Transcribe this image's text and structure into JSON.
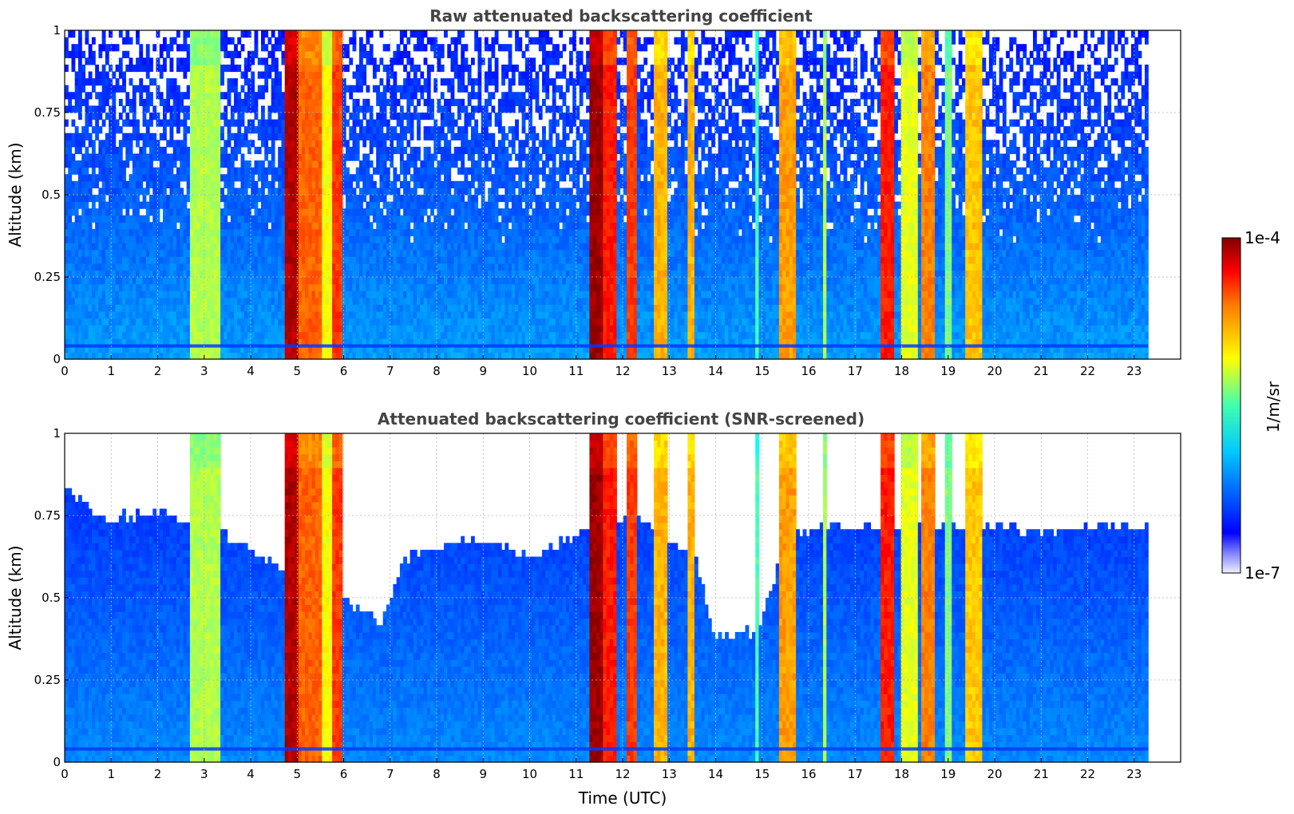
{
  "chart_data": [
    {
      "type": "heatmap",
      "title": "Raw attenuated backscattering coefficient",
      "xlabel": "",
      "ylabel": "Altitude (km)",
      "xlim": [
        0,
        24
      ],
      "ylim": [
        0,
        1
      ],
      "x_ticks": [
        "0",
        "1",
        "2",
        "3",
        "4",
        "5",
        "6",
        "7",
        "8",
        "9",
        "10",
        "11",
        "12",
        "13",
        "14",
        "15",
        "16",
        "17",
        "18",
        "19",
        "20",
        "21",
        "22",
        "23"
      ],
      "y_ticks": [
        "0",
        "0.25",
        "0.5",
        "0.75",
        "1"
      ],
      "grid": true,
      "data_end_time": 23.3,
      "cloud_columns": [
        {
          "start": 2.7,
          "end": 3.35,
          "intensity": 0.55
        },
        {
          "start": 4.75,
          "end": 5.0,
          "intensity": 0.95
        },
        {
          "start": 5.0,
          "end": 5.5,
          "intensity": 0.78
        },
        {
          "start": 5.5,
          "end": 5.75,
          "intensity": 0.62
        },
        {
          "start": 5.75,
          "end": 5.95,
          "intensity": 0.82
        },
        {
          "start": 11.25,
          "end": 11.55,
          "intensity": 0.97
        },
        {
          "start": 11.55,
          "end": 11.9,
          "intensity": 0.85
        },
        {
          "start": 12.1,
          "end": 12.3,
          "intensity": 0.82
        },
        {
          "start": 12.7,
          "end": 12.95,
          "intensity": 0.7
        },
        {
          "start": 13.4,
          "end": 13.55,
          "intensity": 0.7
        },
        {
          "start": 14.85,
          "end": 14.95,
          "intensity": 0.45
        },
        {
          "start": 15.35,
          "end": 15.75,
          "intensity": 0.72
        },
        {
          "start": 16.3,
          "end": 16.4,
          "intensity": 0.55
        },
        {
          "start": 17.55,
          "end": 17.85,
          "intensity": 0.85
        },
        {
          "start": 18.0,
          "end": 18.35,
          "intensity": 0.6
        },
        {
          "start": 18.45,
          "end": 18.7,
          "intensity": 0.75
        },
        {
          "start": 18.9,
          "end": 19.05,
          "intensity": 0.5
        },
        {
          "start": 19.35,
          "end": 19.75,
          "intensity": 0.68
        }
      ]
    },
    {
      "type": "heatmap",
      "title": "Attenuated backscattering coefficient (SNR-screened)",
      "xlabel": "Time (UTC)",
      "ylabel": "Altitude (km)",
      "xlim": [
        0,
        24
      ],
      "ylim": [
        0,
        1
      ],
      "x_ticks": [
        "0",
        "1",
        "2",
        "3",
        "4",
        "5",
        "6",
        "7",
        "8",
        "9",
        "10",
        "11",
        "12",
        "13",
        "14",
        "15",
        "16",
        "17",
        "18",
        "19",
        "20",
        "21",
        "22",
        "23"
      ],
      "y_ticks": [
        "0",
        "0.25",
        "0.5",
        "0.75",
        "1"
      ],
      "grid": true,
      "data_end_time": 23.3,
      "screened_top_profile": [
        {
          "t": 0.0,
          "top": 0.85
        },
        {
          "t": 0.7,
          "top": 0.74
        },
        {
          "t": 2.0,
          "top": 0.76
        },
        {
          "t": 3.4,
          "top": 0.7
        },
        {
          "t": 4.5,
          "top": 0.6
        },
        {
          "t": 6.0,
          "top": 0.5
        },
        {
          "t": 6.8,
          "top": 0.42
        },
        {
          "t": 7.3,
          "top": 0.62
        },
        {
          "t": 8.0,
          "top": 0.66
        },
        {
          "t": 9.0,
          "top": 0.68
        },
        {
          "t": 10.2,
          "top": 0.62
        },
        {
          "t": 11.0,
          "top": 0.7
        },
        {
          "t": 12.3,
          "top": 0.75
        },
        {
          "t": 13.6,
          "top": 0.6
        },
        {
          "t": 14.0,
          "top": 0.38
        },
        {
          "t": 14.9,
          "top": 0.4
        },
        {
          "t": 15.6,
          "top": 0.7
        },
        {
          "t": 17.0,
          "top": 0.72
        },
        {
          "t": 19.5,
          "top": 0.72
        },
        {
          "t": 21.0,
          "top": 0.7
        },
        {
          "t": 23.3,
          "top": 0.72
        }
      ]
    }
  ],
  "colorbar": {
    "label": "1/m/sr",
    "min_label": "1e-7",
    "max_label": "1e-4",
    "colormap": "jet"
  }
}
